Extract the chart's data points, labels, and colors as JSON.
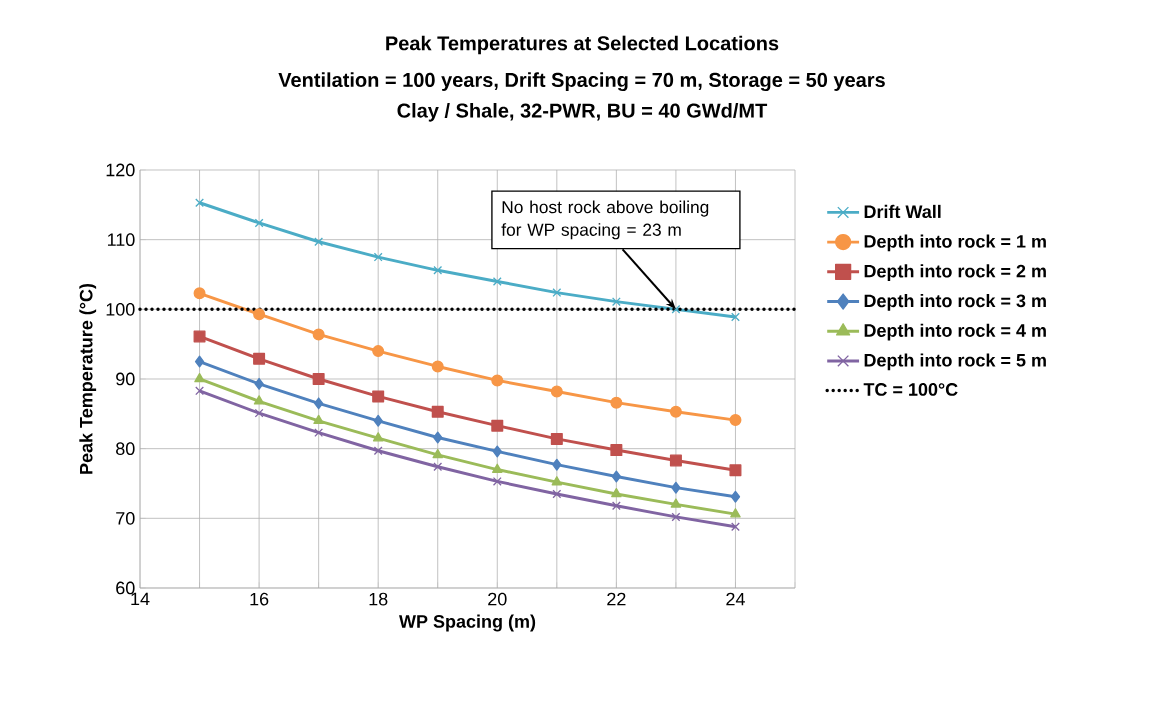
{
  "chart_data": {
    "type": "line",
    "title": "Peak Temperatures at Selected Locations",
    "subtitle": "Ventilation = 100 years, Drift Spacing = 70 m, Storage = 50 years\nClay / Shale, 32-PWR, BU = 40 GWd/MT",
    "xlabel": "WP Spacing (m)",
    "ylabel": "Peak Temperature (°C)",
    "x": [
      15,
      16,
      17,
      18,
      19,
      20,
      21,
      22,
      23,
      24
    ],
    "series": [
      {
        "name": "Drift Wall",
        "color": "#4bacc6",
        "marker": "cross",
        "values": [
          115.3,
          112.4,
          109.7,
          107.5,
          105.6,
          104.0,
          102.4,
          101.1,
          100.0,
          98.9
        ]
      },
      {
        "name": "Depth into rock = 1 m",
        "color": "#f79646",
        "marker": "circle",
        "values": [
          102.3,
          99.3,
          96.4,
          94.0,
          91.8,
          89.8,
          88.2,
          86.6,
          85.3,
          84.1
        ]
      },
      {
        "name": "Depth into rock = 2 m",
        "color": "#c0504d",
        "marker": "square",
        "values": [
          96.1,
          92.9,
          90.0,
          87.5,
          85.3,
          83.3,
          81.4,
          79.8,
          78.3,
          76.9
        ]
      },
      {
        "name": "Depth into rock = 3 m",
        "color": "#4f81bd",
        "marker": "diamond",
        "values": [
          92.5,
          89.3,
          86.5,
          84.0,
          81.6,
          79.6,
          77.7,
          76.0,
          74.4,
          73.1
        ]
      },
      {
        "name": "Depth into rock = 4 m",
        "color": "#9bbb59",
        "marker": "triangle",
        "values": [
          90.0,
          86.8,
          84.0,
          81.5,
          79.1,
          77.0,
          75.2,
          73.5,
          72.0,
          70.6
        ]
      },
      {
        "name": "Depth into rock = 5 m",
        "color": "#8064a2",
        "marker": "cross",
        "values": [
          88.3,
          85.1,
          82.3,
          79.7,
          77.4,
          75.3,
          73.5,
          71.8,
          70.2,
          68.8
        ]
      }
    ],
    "ref_lines": [
      {
        "axis": "y",
        "value": 100,
        "label": "TC = 100°C",
        "color": "#000000",
        "line_style": "dotted"
      }
    ],
    "annotations": [
      {
        "text": "No host rock above boiling for WP spacing = 23 m",
        "x": 23,
        "y": 100
      }
    ],
    "xlim": [
      14,
      25
    ],
    "ylim": [
      60,
      120
    ],
    "xticks": [
      14,
      {
        "value": 15,
        "label": null
      },
      16,
      {
        "value": 17,
        "label": null
      },
      18,
      {
        "value": 19,
        "label": null
      },
      20,
      {
        "value": 21,
        "label": null
      },
      22,
      {
        "value": 23,
        "label": null
      },
      24,
      {
        "value": 25,
        "label": null
      }
    ],
    "yticks": [
      60,
      70,
      80,
      90,
      100,
      110,
      120
    ],
    "grid": true,
    "legend": "right"
  }
}
